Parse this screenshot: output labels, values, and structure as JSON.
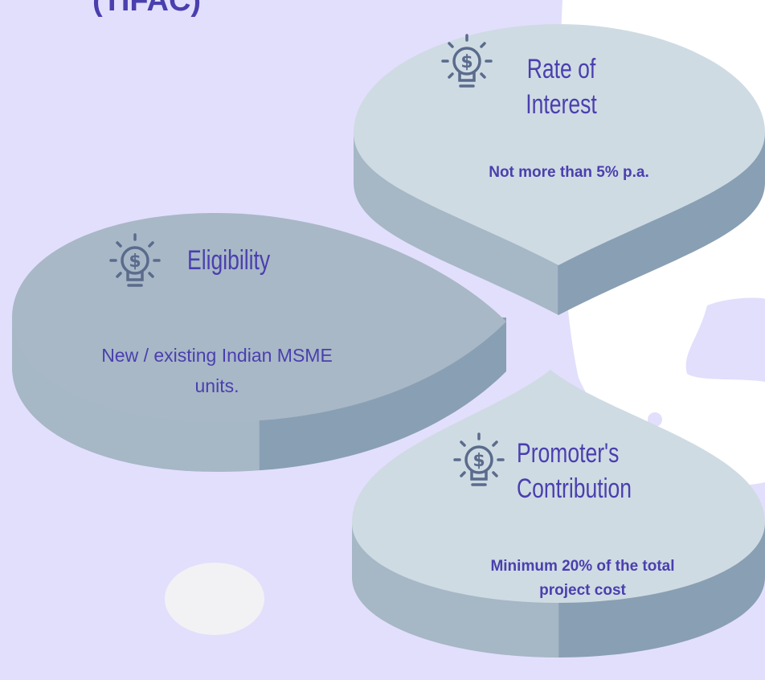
{
  "header": {
    "title": "(TIFAC)"
  },
  "cards": [
    {
      "title": "Rate of Interest",
      "text": "Not more than 5% p.a."
    },
    {
      "title": "Eligibility",
      "text": "New / existing Indian MSME units."
    },
    {
      "title": "Promoter's Contribution",
      "text": "Minimum 20% of the total project cost"
    }
  ]
}
